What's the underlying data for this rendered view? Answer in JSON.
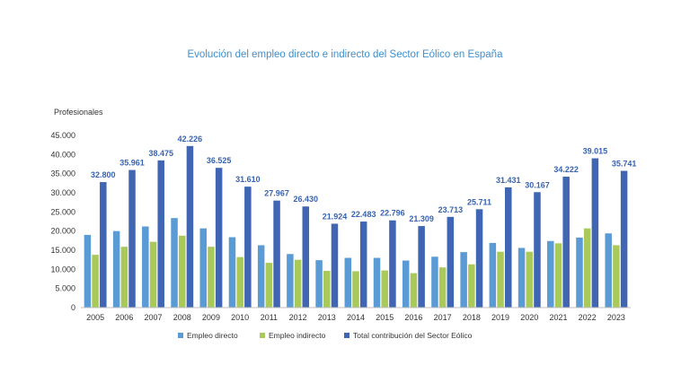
{
  "chart_data": {
    "type": "bar",
    "title": "Evolución del empleo directo e indirecto del Sector Eólico en España",
    "ylabel": "Profesionales",
    "xlabel": "",
    "categories": [
      "2005",
      "2006",
      "2007",
      "2008",
      "2009",
      "2010",
      "2011",
      "2012",
      "2013",
      "2014",
      "2015",
      "2016",
      "2017",
      "2018",
      "2019",
      "2020",
      "2021",
      "2022",
      "2023"
    ],
    "series": [
      {
        "name": "Empleo directo",
        "color": "#5b9bd5",
        "values": [
          19000,
          20000,
          21200,
          23400,
          20700,
          18400,
          16300,
          14000,
          12400,
          13000,
          13000,
          12300,
          13300,
          14500,
          16900,
          15600,
          17400,
          18300,
          19400
        ]
      },
      {
        "name": "Empleo indirecto",
        "color": "#a9c95a",
        "values": [
          13800,
          15900,
          17200,
          18800,
          15900,
          13200,
          11700,
          12500,
          9600,
          9500,
          9700,
          9000,
          10500,
          11300,
          14600,
          14600,
          16800,
          20700,
          16300
        ]
      },
      {
        "name": "Total contribución del Sector Eólico",
        "color": "#3f65b3",
        "values": [
          32800,
          35961,
          38475,
          42226,
          36525,
          31610,
          27967,
          26430,
          21924,
          22483,
          22796,
          21309,
          23713,
          25711,
          31431,
          30167,
          34222,
          39015,
          35741
        ]
      }
    ],
    "data_labels": [
      "32.800",
      "35.961",
      "38.475",
      "42.226",
      "36.525",
      "31.610",
      "27.967",
      "26.430",
      "21.924",
      "22.483",
      "22.796",
      "21.309",
      "23.713",
      "25.711",
      "31.431",
      "30.167",
      "34.222",
      "39.015",
      "35.741"
    ],
    "yticks": [
      0,
      5000,
      10000,
      15000,
      20000,
      25000,
      30000,
      35000,
      40000,
      45000
    ],
    "ytick_labels": [
      "0",
      "5.000",
      "10.000",
      "15.000",
      "20.000",
      "25.000",
      "30.000",
      "35.000",
      "40.000",
      "45.000"
    ],
    "ylim": [
      0,
      45000
    ],
    "grid": false,
    "legend_position": "bottom"
  }
}
